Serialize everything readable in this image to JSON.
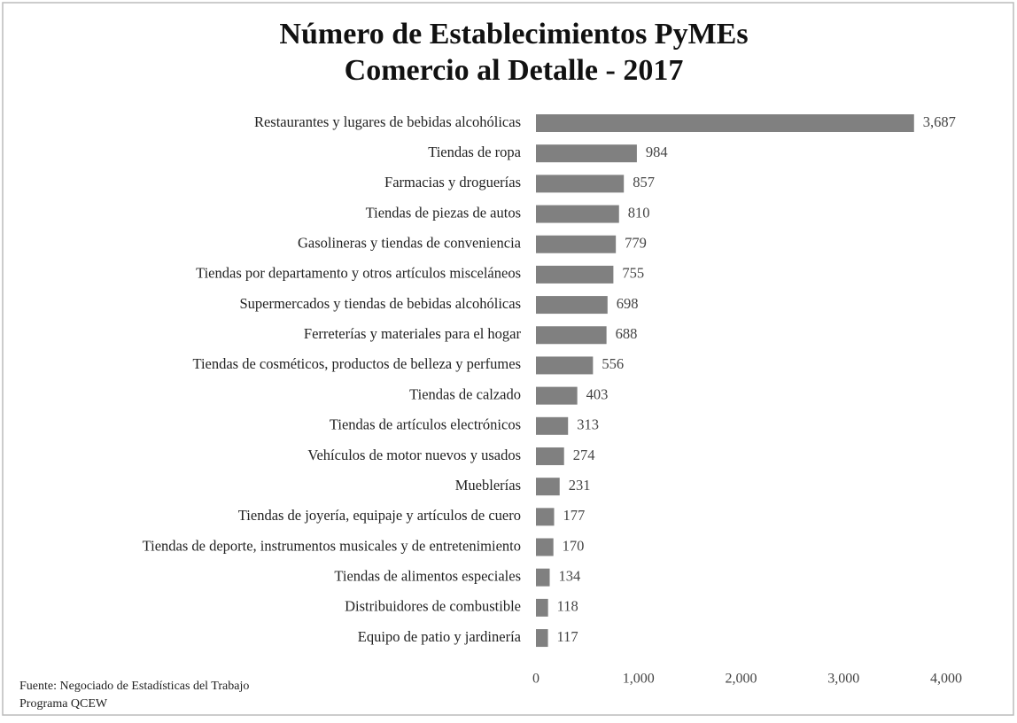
{
  "chart_data": {
    "type": "barh",
    "title": "Número de Establecimientos PyMEs",
    "subtitle": "Comercio al Detalle - 2017",
    "categories": [
      "Restaurantes y lugares de bebidas alcohólicas",
      "Tiendas de ropa",
      "Farmacias y droguerías",
      "Tiendas de piezas de autos",
      "Gasolineras y tiendas de conveniencia",
      "Tiendas por departamento y otros artículos misceláneos",
      "Supermercados y tiendas de bebidas alcohólicas",
      "Ferreterías y materiales para el hogar",
      "Tiendas de cosméticos, productos de belleza y perfumes",
      "Tiendas de calzado",
      "Tiendas de artículos electrónicos",
      "Vehículos de motor nuevos y usados",
      "Mueblerías",
      "Tiendas de joyería, equipaje y artículos de cuero",
      "Tiendas de deporte, instrumentos musicales y de entretenimiento",
      "Tiendas de alimentos especiales",
      "Distribuidores de combustible",
      "Equipo de patio y jardinería"
    ],
    "values": [
      3687,
      984,
      857,
      810,
      779,
      755,
      698,
      688,
      556,
      403,
      313,
      274,
      231,
      177,
      170,
      134,
      118,
      117
    ],
    "value_labels": [
      "3,687",
      "984",
      "857",
      "810",
      "779",
      "755",
      "698",
      "688",
      "556",
      "403",
      "313",
      "274",
      "231",
      "177",
      "170",
      "134",
      "118",
      "117"
    ],
    "color": "#808080",
    "xlim": [
      0,
      4000
    ],
    "xticks": [
      0,
      {
        "value": 1000,
        "label": "1,000"
      },
      {
        "value": 2000,
        "label": "2,000"
      },
      {
        "value": 3000,
        "label": "3,000"
      },
      {
        "value": 4000,
        "label": "4,000"
      }
    ],
    "grid": false,
    "source": [
      "Fuente: Negociado de Estadísticas del Trabajo",
      "Programa QCEW"
    ]
  }
}
